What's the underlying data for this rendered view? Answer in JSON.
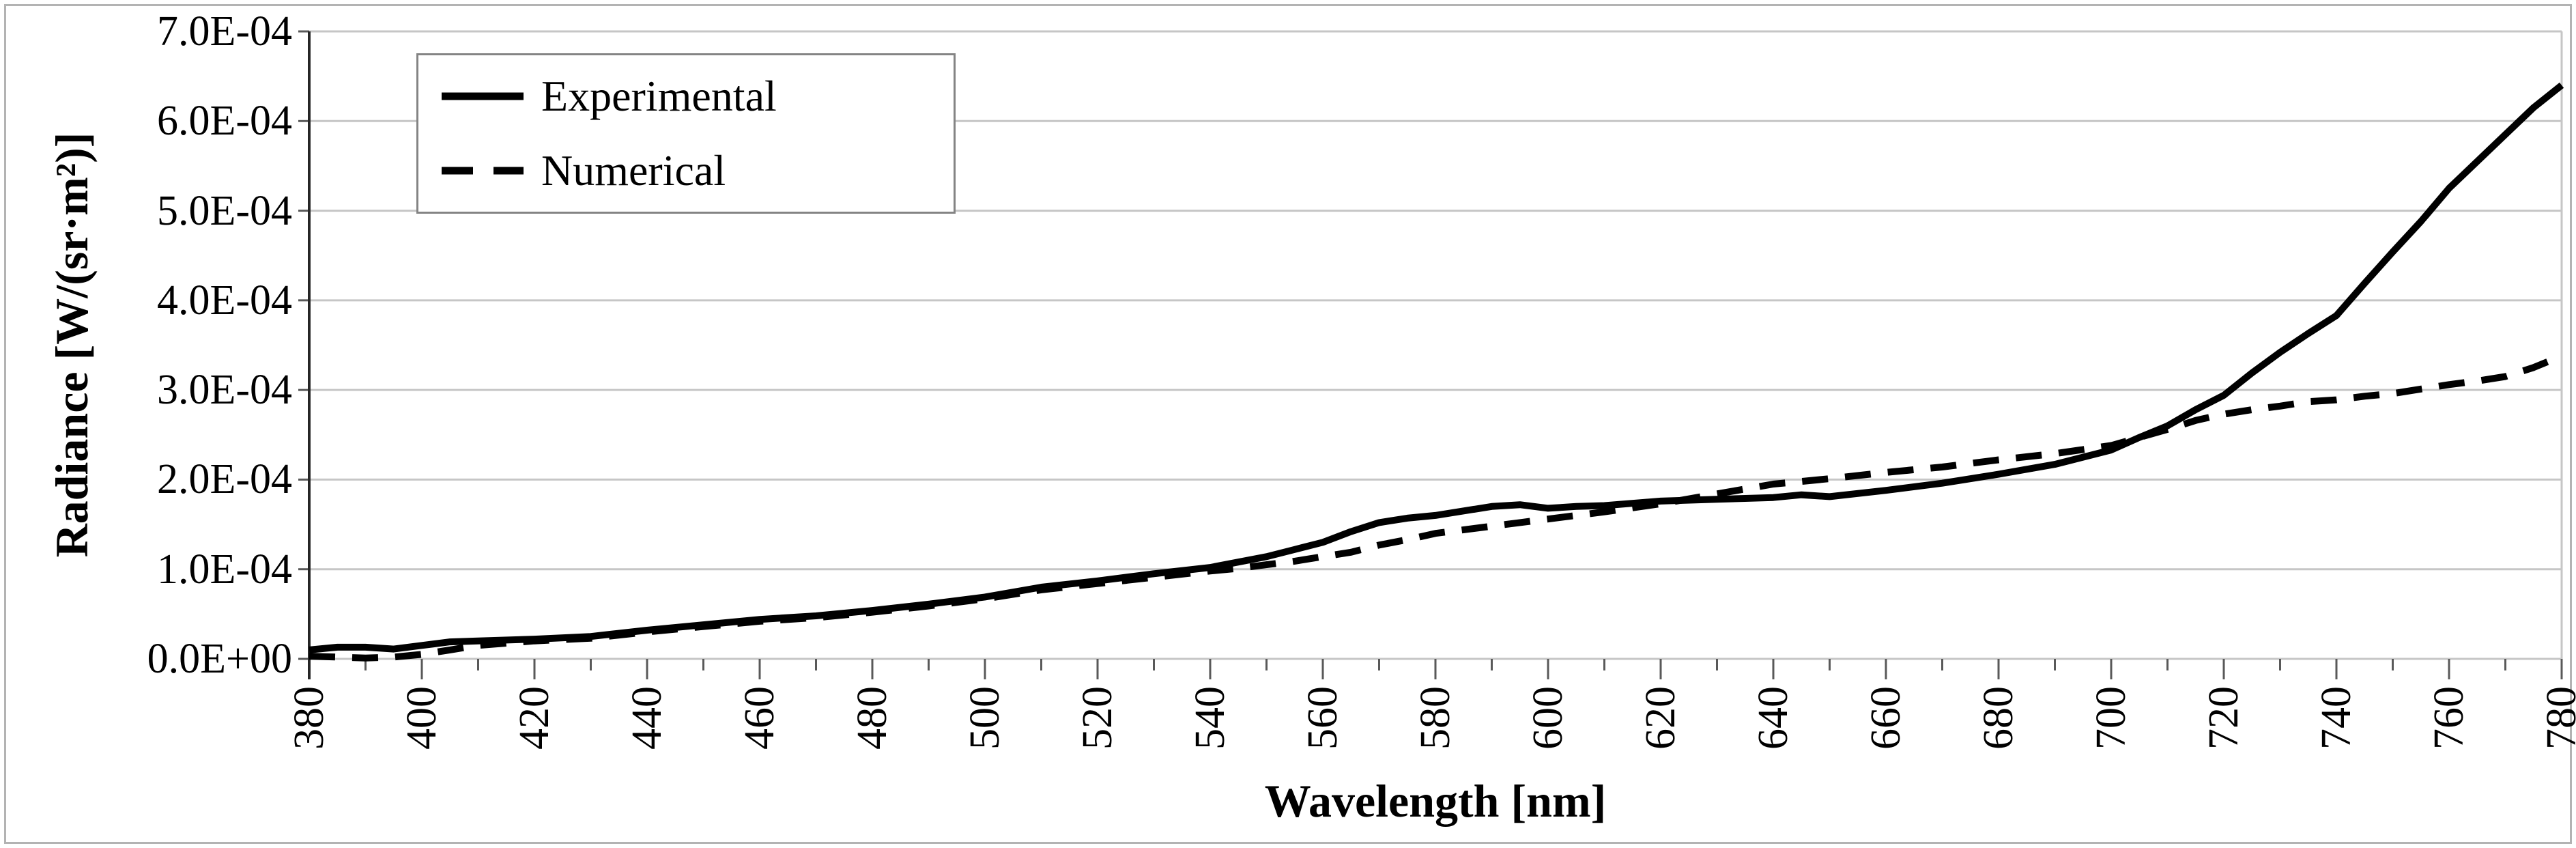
{
  "chart_data": {
    "type": "line",
    "title": "",
    "xlabel": "Wavelength [nm]",
    "ylabel": "Radiance [W/(sr·m²)]",
    "x_unit": "nm",
    "y_unit": "W/(sr·m²)",
    "xlim": [
      380,
      780
    ],
    "ylim": [
      0,
      0.0007
    ],
    "grid": "horizontal",
    "legend_position": "top-left-inside",
    "x_major_tick_step": 20,
    "x_minor_tick_step": 10,
    "x_tick_labels": [
      "380",
      "400",
      "420",
      "440",
      "460",
      "480",
      "500",
      "520",
      "540",
      "560",
      "580",
      "600",
      "620",
      "640",
      "660",
      "680",
      "700",
      "720",
      "740",
      "760",
      "780"
    ],
    "y_tick_labels": [
      "0.0E+00",
      "1.0E-04",
      "2.0E-04",
      "3.0E-04",
      "4.0E-04",
      "5.0E-04",
      "6.0E-04",
      "7.0E-04"
    ],
    "value_scale_note": "series values below are in units of 1.0E-04 W/(sr·m²)",
    "x": [
      380,
      385,
      390,
      395,
      400,
      405,
      410,
      420,
      430,
      440,
      450,
      460,
      470,
      480,
      490,
      500,
      510,
      520,
      530,
      540,
      545,
      550,
      555,
      560,
      565,
      570,
      575,
      580,
      590,
      595,
      600,
      605,
      610,
      620,
      630,
      640,
      645,
      650,
      660,
      670,
      680,
      690,
      700,
      705,
      710,
      715,
      720,
      725,
      730,
      735,
      740,
      745,
      750,
      755,
      760,
      765,
      770,
      775,
      780
    ],
    "series": [
      {
        "name": "Experimental",
        "style": "solid",
        "color": "#000000",
        "values": [
          0.1,
          0.13,
          0.13,
          0.11,
          0.15,
          0.19,
          0.2,
          0.22,
          0.25,
          0.32,
          0.38,
          0.44,
          0.48,
          0.54,
          0.61,
          0.69,
          0.8,
          0.87,
          0.95,
          1.02,
          1.08,
          1.14,
          1.22,
          1.3,
          1.42,
          1.52,
          1.57,
          1.6,
          1.7,
          1.72,
          1.68,
          1.7,
          1.71,
          1.76,
          1.78,
          1.8,
          1.83,
          1.81,
          1.88,
          1.96,
          2.06,
          2.17,
          2.33,
          2.47,
          2.6,
          2.78,
          2.94,
          3.19,
          3.42,
          3.63,
          3.83,
          4.19,
          4.54,
          4.88,
          5.25,
          5.55,
          5.85,
          6.15,
          6.4
        ]
      },
      {
        "name": "Numerical",
        "style": "dashed",
        "color": "#000000",
        "values": [
          0.03,
          0.02,
          0.01,
          0.02,
          0.05,
          0.1,
          0.15,
          0.2,
          0.23,
          0.3,
          0.36,
          0.42,
          0.46,
          0.52,
          0.59,
          0.67,
          0.77,
          0.84,
          0.91,
          0.98,
          1.01,
          1.05,
          1.09,
          1.14,
          1.19,
          1.27,
          1.33,
          1.4,
          1.48,
          1.52,
          1.56,
          1.6,
          1.64,
          1.73,
          1.84,
          1.95,
          1.98,
          2.01,
          2.08,
          2.14,
          2.22,
          2.29,
          2.38,
          2.47,
          2.56,
          2.66,
          2.73,
          2.78,
          2.82,
          2.87,
          2.89,
          2.93,
          2.96,
          3.01,
          3.06,
          3.1,
          3.15,
          3.25,
          3.38
        ]
      }
    ],
    "colors": {
      "gridline": "#c6c6c6",
      "axis_line": "#262626",
      "tick": "#595959",
      "plot_right_border": "#c6c6c6",
      "frame_border": "#b3b3b3",
      "series": "#000000"
    }
  },
  "legend": {
    "items": [
      {
        "label": "Experimental",
        "line_style": "solid"
      },
      {
        "label": "Numerical",
        "line_style": "dashed"
      }
    ]
  }
}
